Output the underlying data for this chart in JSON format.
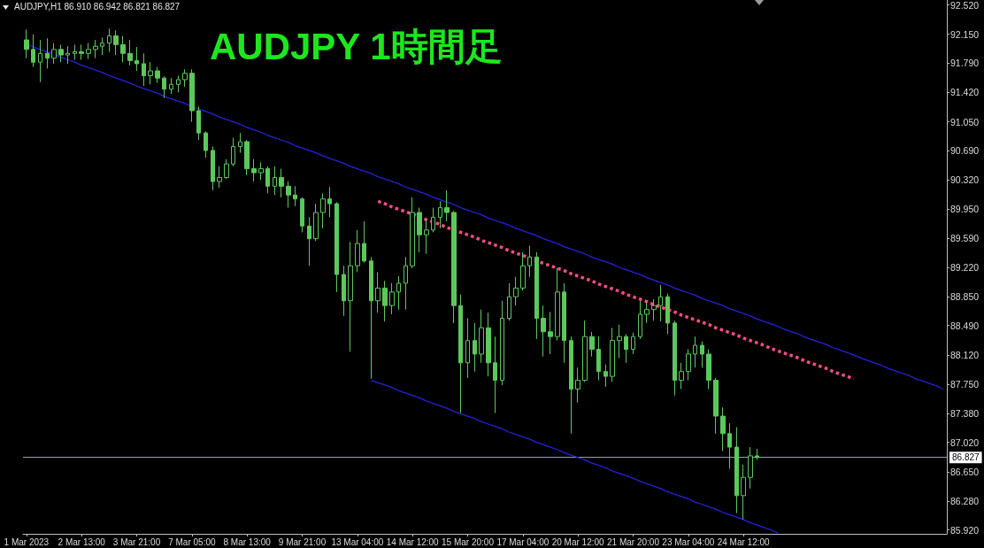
{
  "chart_data": {
    "type": "candlestick",
    "title": "AUDJPY 1時間足",
    "annotations": [
      "AUDJPY,H1 86.910 86.942 86.821 86.827"
    ],
    "categories": [
      "1 Mar 2023",
      null,
      null,
      null,
      null,
      null,
      null,
      null,
      "2 Mar 13:00",
      null,
      null,
      null,
      null,
      null,
      null,
      null,
      "3 Mar 21:00",
      null,
      null,
      null,
      null,
      null,
      null,
      null,
      "7 Mar 05:00",
      null,
      null,
      null,
      null,
      null,
      null,
      null,
      "8 Mar 13:00",
      null,
      null,
      null,
      null,
      null,
      null,
      null,
      "9 Mar 21:00",
      null,
      null,
      null,
      null,
      null,
      null,
      null,
      "13 Mar 04:00",
      null,
      null,
      null,
      null,
      null,
      null,
      null,
      "14 Mar 12:00",
      null,
      null,
      null,
      null,
      null,
      null,
      null,
      "15 Mar 20:00",
      null,
      null,
      null,
      null,
      null,
      null,
      null,
      "17 Mar 04:00",
      null,
      null,
      null,
      null,
      null,
      null,
      null,
      "20 Mar 12:00",
      null,
      null,
      null,
      null,
      null,
      null,
      null,
      "21 Mar 20:00",
      null,
      null,
      null,
      null,
      null,
      null,
      null,
      "23 Mar 04:00",
      null,
      null,
      null,
      null,
      null,
      null,
      null,
      "24 Mar 12:00",
      null,
      null,
      null,
      null,
      null,
      null,
      null,
      null,
      null,
      null,
      null,
      null,
      null,
      null,
      null,
      null,
      null,
      null,
      null,
      null,
      null,
      null,
      null,
      null,
      null,
      null,
      null,
      null,
      null
    ],
    "ohlc": [
      [
        92.08,
        92.21,
        91.85,
        91.96
      ],
      [
        91.96,
        92.15,
        91.74,
        91.8
      ],
      [
        91.8,
        92.08,
        91.55,
        91.91
      ],
      [
        91.91,
        92.1,
        91.72,
        91.85
      ],
      [
        91.85,
        92.04,
        91.78,
        91.96
      ],
      [
        91.96,
        92.02,
        91.8,
        91.89
      ],
      [
        91.89,
        92.0,
        91.78,
        91.91
      ],
      [
        91.91,
        92.02,
        91.83,
        91.93
      ],
      [
        91.93,
        92.02,
        91.83,
        91.91
      ],
      [
        91.91,
        92.04,
        91.84,
        91.96
      ],
      [
        91.96,
        92.08,
        91.85,
        92.0
      ],
      [
        92.0,
        92.11,
        91.89,
        92.04
      ],
      [
        92.04,
        92.22,
        91.93,
        92.13
      ],
      [
        92.13,
        92.2,
        91.89,
        92.02
      ],
      [
        92.02,
        92.13,
        91.8,
        91.91
      ],
      [
        91.91,
        92.08,
        91.76,
        91.82
      ],
      [
        91.82,
        91.99,
        91.69,
        91.78
      ],
      [
        91.78,
        91.91,
        91.5,
        91.63
      ],
      [
        91.63,
        91.8,
        91.52,
        91.69
      ],
      [
        91.69,
        91.74,
        91.54,
        91.6
      ],
      [
        91.6,
        91.62,
        91.35,
        91.46
      ],
      [
        91.46,
        91.6,
        91.4,
        91.52
      ],
      [
        91.52,
        91.63,
        91.42,
        91.58
      ],
      [
        91.58,
        91.71,
        91.49,
        91.66
      ],
      [
        91.66,
        91.71,
        91.05,
        91.19
      ],
      [
        91.19,
        91.24,
        90.82,
        90.91
      ],
      [
        90.91,
        90.93,
        90.6,
        90.69
      ],
      [
        90.69,
        90.74,
        90.19,
        90.3
      ],
      [
        90.3,
        90.49,
        90.22,
        90.35
      ],
      [
        90.35,
        90.58,
        90.33,
        90.52
      ],
      [
        90.52,
        90.85,
        90.49,
        90.74
      ],
      [
        90.74,
        90.91,
        90.66,
        90.8
      ],
      [
        90.8,
        90.82,
        90.38,
        90.46
      ],
      [
        90.46,
        90.58,
        90.3,
        90.41
      ],
      [
        90.41,
        90.54,
        90.32,
        90.46
      ],
      [
        90.46,
        90.49,
        90.15,
        90.24
      ],
      [
        90.24,
        90.49,
        90.13,
        90.35
      ],
      [
        90.35,
        90.46,
        90.1,
        90.24
      ],
      [
        90.24,
        90.3,
        89.97,
        90.13
      ],
      [
        90.13,
        90.24,
        89.99,
        90.08
      ],
      [
        90.08,
        90.1,
        89.66,
        89.74
      ],
      [
        89.74,
        89.85,
        89.24,
        89.58
      ],
      [
        89.58,
        90.02,
        89.55,
        89.91
      ],
      [
        89.91,
        90.15,
        89.71,
        90.08
      ],
      [
        90.08,
        90.23,
        89.85,
        90.02
      ],
      [
        90.02,
        90.04,
        88.91,
        89.13
      ],
      [
        89.13,
        89.24,
        88.61,
        88.8
      ],
      [
        88.8,
        89.54,
        88.16,
        89.24
      ],
      [
        89.24,
        89.69,
        89.16,
        89.52
      ],
      [
        89.52,
        89.8,
        89.28,
        89.3
      ],
      [
        89.3,
        89.35,
        87.82,
        88.8
      ],
      [
        88.8,
        89.16,
        88.65,
        88.96
      ],
      [
        88.96,
        89.05,
        88.54,
        88.74
      ],
      [
        88.74,
        89.02,
        88.63,
        88.91
      ],
      [
        88.91,
        89.11,
        88.69,
        89.02
      ],
      [
        89.02,
        89.35,
        88.69,
        89.24
      ],
      [
        89.24,
        90.1,
        89.21,
        89.91
      ],
      [
        89.91,
        89.97,
        89.41,
        89.63
      ],
      [
        89.63,
        89.82,
        89.39,
        89.69
      ],
      [
        89.69,
        89.97,
        89.66,
        89.85
      ],
      [
        89.85,
        90.05,
        89.71,
        89.97
      ],
      [
        89.97,
        90.19,
        89.8,
        89.91
      ],
      [
        89.91,
        89.93,
        88.52,
        88.74
      ],
      [
        88.74,
        88.88,
        87.39,
        88.02
      ],
      [
        88.02,
        88.58,
        87.83,
        88.3
      ],
      [
        88.3,
        88.52,
        87.91,
        88.13
      ],
      [
        88.13,
        88.69,
        88.02,
        88.46
      ],
      [
        88.46,
        88.65,
        87.85,
        88.02
      ],
      [
        88.02,
        88.35,
        87.39,
        87.8
      ],
      [
        87.8,
        88.8,
        87.74,
        88.58
      ],
      [
        88.58,
        89.02,
        88.55,
        88.85
      ],
      [
        88.85,
        89.1,
        88.74,
        88.96
      ],
      [
        88.96,
        89.41,
        88.93,
        89.24
      ],
      [
        89.24,
        89.49,
        89.1,
        89.35
      ],
      [
        89.35,
        89.41,
        88.32,
        88.58
      ],
      [
        88.58,
        88.74,
        88.1,
        88.41
      ],
      [
        88.41,
        88.66,
        88.13,
        88.35
      ],
      [
        88.35,
        89.21,
        88.3,
        88.91
      ],
      [
        88.91,
        89.02,
        88.02,
        88.3
      ],
      [
        88.3,
        88.35,
        87.13,
        87.69
      ],
      [
        87.69,
        87.96,
        87.52,
        87.8
      ],
      [
        87.8,
        88.55,
        87.78,
        88.35
      ],
      [
        88.35,
        88.41,
        88.1,
        88.19
      ],
      [
        88.19,
        88.35,
        87.8,
        87.91
      ],
      [
        87.91,
        88.0,
        87.72,
        87.85
      ],
      [
        87.85,
        88.46,
        87.78,
        88.3
      ],
      [
        88.3,
        88.5,
        88.08,
        88.35
      ],
      [
        88.35,
        88.38,
        88.02,
        88.19
      ],
      [
        88.19,
        88.4,
        88.13,
        88.35
      ],
      [
        88.35,
        88.8,
        88.32,
        88.63
      ],
      [
        88.63,
        88.78,
        88.52,
        88.69
      ],
      [
        88.69,
        88.82,
        88.55,
        88.74
      ],
      [
        88.74,
        89.0,
        88.54,
        88.85
      ],
      [
        88.85,
        88.89,
        88.38,
        88.52
      ],
      [
        88.52,
        88.55,
        87.61,
        87.8
      ],
      [
        87.8,
        88.02,
        87.69,
        87.91
      ],
      [
        87.91,
        88.19,
        87.8,
        88.13
      ],
      [
        88.13,
        88.35,
        87.96,
        88.24
      ],
      [
        88.24,
        88.29,
        87.96,
        88.13
      ],
      [
        88.13,
        88.19,
        87.69,
        87.8
      ],
      [
        87.8,
        87.83,
        87.13,
        87.35
      ],
      [
        87.35,
        87.46,
        86.91,
        87.13
      ],
      [
        87.13,
        87.26,
        86.69,
        86.96
      ],
      [
        86.96,
        87.21,
        86.13,
        86.35
      ],
      [
        86.35,
        86.74,
        86.05,
        86.58
      ],
      [
        86.58,
        86.96,
        86.44,
        86.85
      ],
      [
        86.85,
        86.94,
        86.8,
        86.83
      ],
      null,
      null,
      null,
      null,
      null,
      null,
      null,
      null,
      null,
      null,
      null,
      null,
      null,
      null,
      null,
      null,
      null,
      null,
      null,
      null,
      null,
      null,
      null,
      null,
      null,
      null,
      null
    ],
    "color": "#5cc85c",
    "series": [
      {
        "type": "line",
        "color": "#2424d8",
        "values": [
          92.03,
          91.99,
          91.96,
          91.93,
          91.9,
          91.86,
          91.83,
          91.8,
          91.76,
          91.73,
          91.7,
          91.67,
          91.63,
          91.6,
          91.57,
          91.54,
          91.5,
          91.47,
          91.44,
          91.41,
          91.37,
          91.34,
          91.31,
          91.28,
          91.24,
          91.21,
          91.18,
          91.15,
          91.11,
          91.08,
          91.05,
          91.02,
          90.98,
          90.95,
          90.92,
          90.88,
          90.85,
          90.82,
          90.79,
          90.75,
          90.72,
          90.69,
          90.66,
          90.62,
          90.59,
          90.56,
          90.53,
          90.49,
          90.46,
          90.43,
          90.4,
          90.36,
          90.33,
          90.3,
          90.27,
          90.23,
          90.2,
          90.17,
          90.14,
          90.1,
          90.07,
          90.04,
          90.01,
          89.97,
          89.94,
          89.91,
          89.88,
          89.84,
          89.81,
          89.78,
          89.75,
          89.71,
          89.68,
          89.65,
          89.62,
          89.58,
          89.55,
          89.52,
          89.48,
          89.45,
          89.42,
          89.39,
          89.35,
          89.32,
          89.29,
          89.26,
          89.22,
          89.19,
          89.16,
          89.13,
          89.09,
          89.06,
          89.03,
          89.0,
          88.96,
          88.93,
          88.9,
          88.87,
          88.83,
          88.8,
          88.77,
          88.74,
          88.7,
          88.67,
          88.64,
          88.61,
          88.57,
          88.54,
          88.51,
          88.48,
          88.44,
          88.41,
          88.38,
          88.34,
          88.31,
          88.28,
          88.25,
          88.21,
          88.18,
          88.15,
          88.12,
          88.08,
          88.05,
          88.02,
          87.99,
          87.95,
          87.92,
          87.89,
          87.86,
          87.82,
          87.79,
          87.76,
          87.73,
          87.69
        ]
      },
      {
        "type": "line",
        "color": "#2424d8",
        "values": [
          null,
          null,
          null,
          null,
          null,
          null,
          null,
          null,
          null,
          null,
          null,
          null,
          null,
          null,
          null,
          null,
          null,
          null,
          null,
          null,
          null,
          null,
          null,
          null,
          null,
          null,
          null,
          null,
          null,
          null,
          null,
          null,
          null,
          null,
          null,
          null,
          null,
          null,
          null,
          null,
          null,
          null,
          null,
          null,
          null,
          null,
          null,
          null,
          null,
          null,
          87.8,
          87.77,
          87.74,
          87.71,
          87.67,
          87.64,
          87.61,
          87.58,
          87.54,
          87.51,
          87.48,
          87.45,
          87.41,
          87.38,
          87.35,
          87.32,
          87.28,
          87.25,
          87.22,
          87.19,
          87.15,
          87.12,
          87.09,
          87.06,
          87.02,
          86.99,
          86.96,
          86.93,
          86.89,
          86.86,
          86.83,
          86.8,
          86.76,
          86.73,
          86.7,
          86.66,
          86.63,
          86.6,
          86.57,
          86.53,
          86.5,
          86.47,
          86.44,
          86.4,
          86.37,
          86.34,
          86.31,
          86.27,
          86.24,
          86.21,
          86.18,
          86.14,
          86.11,
          86.08,
          86.05,
          86.01,
          85.98,
          85.95,
          85.92,
          85.88,
          null,
          null,
          null,
          null,
          null,
          null,
          null,
          null,
          null,
          null,
          null,
          null,
          null,
          null,
          null,
          null,
          null,
          null,
          null,
          null,
          null,
          null,
          null,
          null
        ]
      },
      {
        "type": "line",
        "color": "#ff4b8b",
        "line_style": "dotted",
        "values": [
          null,
          null,
          null,
          null,
          null,
          null,
          null,
          null,
          null,
          null,
          null,
          null,
          null,
          null,
          null,
          null,
          null,
          null,
          null,
          null,
          null,
          null,
          null,
          null,
          null,
          null,
          null,
          null,
          null,
          null,
          null,
          null,
          null,
          null,
          null,
          null,
          null,
          null,
          null,
          null,
          null,
          null,
          null,
          null,
          null,
          null,
          null,
          null,
          null,
          null,
          null,
          90.05,
          90.02,
          89.98,
          89.95,
          89.92,
          89.89,
          89.85,
          89.82,
          89.79,
          89.76,
          89.72,
          89.69,
          89.66,
          89.63,
          89.6,
          89.56,
          89.53,
          89.5,
          89.47,
          89.43,
          89.4,
          89.37,
          89.34,
          89.3,
          89.27,
          89.24,
          89.21,
          89.18,
          89.14,
          89.11,
          89.08,
          89.05,
          89.01,
          88.98,
          88.95,
          88.92,
          88.88,
          88.85,
          88.82,
          88.79,
          88.75,
          88.72,
          88.69,
          88.66,
          88.62,
          88.59,
          88.56,
          88.53,
          88.5,
          88.46,
          88.43,
          88.4,
          88.37,
          88.33,
          88.3,
          88.27,
          88.24,
          88.2,
          88.17,
          88.14,
          88.11,
          88.08,
          88.04,
          88.01,
          87.98,
          87.95,
          87.91,
          87.88,
          87.85,
          87.82,
          null,
          null,
          null,
          null,
          null,
          null,
          null,
          null,
          null,
          null,
          null,
          null,
          null
        ]
      }
    ],
    "ylim": [
      85.87,
      92.58
    ],
    "yticks": [
      {
        "value": 92.52,
        "label": "92.520"
      },
      {
        "value": 92.15,
        "label": "92.150"
      },
      {
        "value": 91.79,
        "label": "91.790"
      },
      {
        "value": 91.42,
        "label": "91.420"
      },
      {
        "value": 91.05,
        "label": "91.050"
      },
      {
        "value": 90.69,
        "label": "90.690"
      },
      {
        "value": 90.32,
        "label": "90.320"
      },
      {
        "value": 89.95,
        "label": "89.950"
      },
      {
        "value": 89.59,
        "label": "89.590"
      },
      {
        "value": 89.22,
        "label": "89.220"
      },
      {
        "value": 88.85,
        "label": "88.850"
      },
      {
        "value": 88.49,
        "label": "88.490"
      },
      {
        "value": 88.12,
        "label": "88.120"
      },
      {
        "value": 87.75,
        "label": "87.750"
      },
      {
        "value": 87.38,
        "label": "87.380"
      },
      {
        "value": 87.02,
        "label": "87.020"
      },
      {
        "value": 86.65,
        "label": "86.650"
      },
      {
        "value": 86.28,
        "label": "86.280"
      },
      {
        "value": 85.92,
        "label": "85.920"
      }
    ],
    "ref_lines": [
      {
        "axis": "y",
        "value": 86.827,
        "label": "86.827",
        "color": "#9a9ab8"
      }
    ],
    "grid": false
  }
}
